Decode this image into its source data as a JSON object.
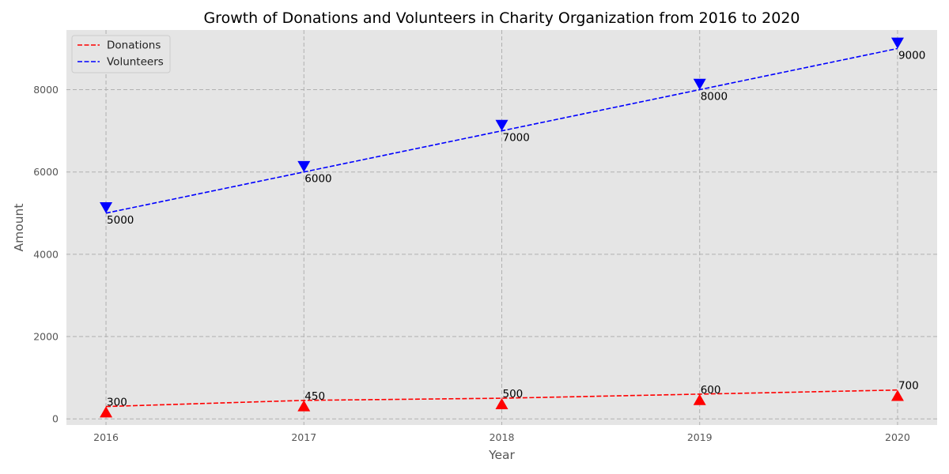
{
  "chart_data": {
    "type": "line",
    "title": "Growth of Donations and Volunteers in Charity Organization from 2016 to 2020",
    "xlabel": "Year",
    "ylabel": "Amount",
    "x": [
      2016,
      2017,
      2018,
      2019,
      2020
    ],
    "x_ticks": [
      "2016",
      "2017",
      "2018",
      "2019",
      "2020"
    ],
    "y_ticks": [
      "0",
      "2000",
      "4000",
      "6000",
      "8000"
    ],
    "xlim": [
      2015.8,
      2020.2
    ],
    "ylim": [
      -150,
      9450
    ],
    "grid": true,
    "legend_position": "top-left",
    "series": [
      {
        "name": "Donations",
        "values": [
          300,
          450,
          500,
          600,
          700
        ],
        "marker_values": [
          150,
          300,
          350,
          450,
          550
        ],
        "labels": [
          "300",
          "450",
          "500",
          "600",
          "700"
        ],
        "color": "#ff0000",
        "line_style": "dashed",
        "marker": "triangle-up"
      },
      {
        "name": "Volunteers",
        "values": [
          5000,
          6000,
          7000,
          8000,
          9000
        ],
        "marker_values": [
          5150,
          6150,
          7150,
          8150,
          9150
        ],
        "labels": [
          "5000",
          "6000",
          "7000",
          "8000",
          "9000"
        ],
        "color": "#0000ff",
        "line_style": "dashed",
        "marker": "triangle-down"
      }
    ],
    "background_color": "#e5e5e5",
    "grid_color": "#b0b0b0"
  }
}
